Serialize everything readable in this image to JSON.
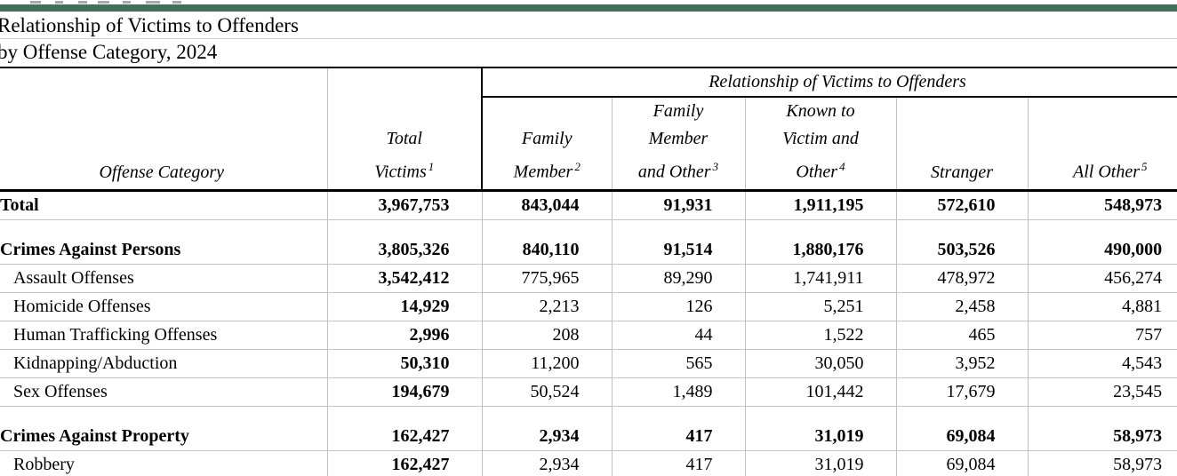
{
  "colors": {
    "green_bar": "#3E7157"
  },
  "title": {
    "line1": "Relationship of Victims to Offenders",
    "line2": "by Offense Category, 2024"
  },
  "table": {
    "span_header": "Relationship of Victims to Offenders",
    "columns": [
      {
        "id": "offense-category",
        "lines": [
          "Offense Category"
        ],
        "sup": ""
      },
      {
        "id": "total-victims",
        "lines": [
          "Total",
          "Victims"
        ],
        "sup": "1"
      },
      {
        "id": "family-member",
        "lines": [
          "Family",
          "Member"
        ],
        "sup": "2"
      },
      {
        "id": "family-member-and-other",
        "lines": [
          "Family",
          "Member",
          "and Other"
        ],
        "sup": "3"
      },
      {
        "id": "known-to-victim-and-other",
        "lines": [
          "Known to",
          "Victim and",
          "Other"
        ],
        "sup": "4"
      },
      {
        "id": "stranger",
        "lines": [
          "Stranger"
        ],
        "sup": ""
      },
      {
        "id": "all-other",
        "lines": [
          "All Other"
        ],
        "sup": "5"
      }
    ],
    "rows": [
      {
        "type": "total",
        "label": "Total",
        "values": [
          "3,967,753",
          "843,044",
          "91,931",
          "1,911,195",
          "572,610",
          "548,973"
        ]
      },
      {
        "type": "spacer"
      },
      {
        "type": "category",
        "label": "Crimes Against Persons",
        "values": [
          "3,805,326",
          "840,110",
          "91,514",
          "1,880,176",
          "503,526",
          "490,000"
        ]
      },
      {
        "type": "item",
        "label": "Assault Offenses",
        "values": [
          "3,542,412",
          "775,965",
          "89,290",
          "1,741,911",
          "478,972",
          "456,274"
        ]
      },
      {
        "type": "item",
        "label": "Homicide Offenses",
        "values": [
          "14,929",
          "2,213",
          "126",
          "5,251",
          "2,458",
          "4,881"
        ]
      },
      {
        "type": "item",
        "label": "Human Trafficking Offenses",
        "values": [
          "2,996",
          "208",
          "44",
          "1,522",
          "465",
          "757"
        ]
      },
      {
        "type": "item",
        "label": "Kidnapping/Abduction",
        "values": [
          "50,310",
          "11,200",
          "565",
          "30,050",
          "3,952",
          "4,543"
        ]
      },
      {
        "type": "item",
        "label": "Sex Offenses",
        "values": [
          "194,679",
          "50,524",
          "1,489",
          "101,442",
          "17,679",
          "23,545"
        ]
      },
      {
        "type": "spacer"
      },
      {
        "type": "category",
        "label": "Crimes Against Property",
        "values": [
          "162,427",
          "2,934",
          "417",
          "31,019",
          "69,084",
          "58,973"
        ]
      },
      {
        "type": "item",
        "label": "Robbery",
        "values": [
          "162,427",
          "2,934",
          "417",
          "31,019",
          "69,084",
          "58,973"
        ]
      }
    ]
  }
}
